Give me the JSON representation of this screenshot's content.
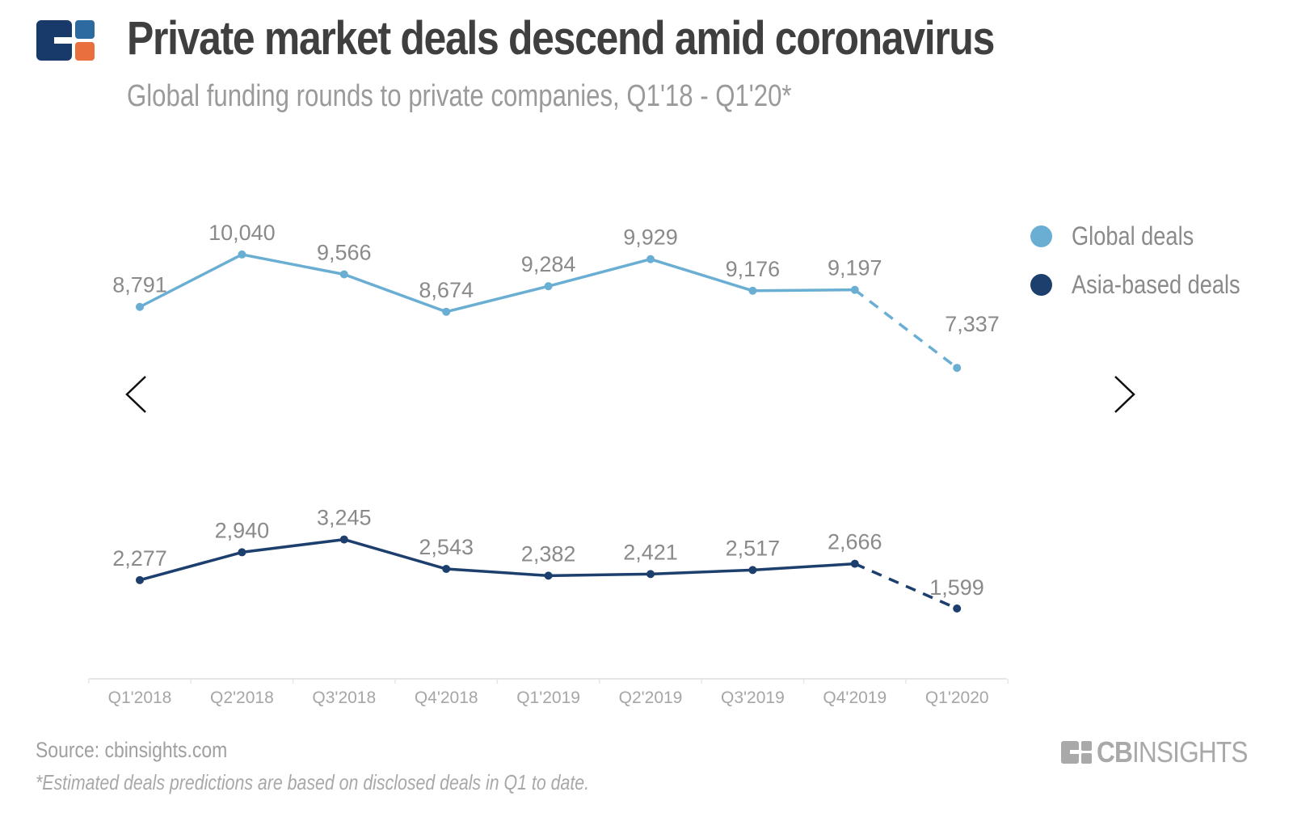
{
  "header": {
    "title": "Private market deals descend amid coronavirus",
    "subtitle": "Global funding rounds to private companies, Q1'18 - Q1'20*",
    "logo_icon": "cb-insights-logo-icon"
  },
  "navigation": {
    "prev_icon": "chevron-left-icon",
    "next_icon": "chevron-right-icon"
  },
  "footer": {
    "source": "Source: cbinsights.com",
    "footnote": "*Estimated deals predictions are based on disclosed deals in Q1 to date.",
    "brand_bold": "CB",
    "brand_light": "INSIGHTS"
  },
  "colors": {
    "global": "#6aafd3",
    "asia": "#1d3f6e",
    "logo_dark": "#173a6a",
    "logo_mid": "#2c6aa0",
    "logo_orange": "#e9703e",
    "label": "#8a8a8a",
    "axis": "#e6e6e6"
  },
  "chart_data": {
    "type": "line",
    "title": "Private market deals descend amid coronavirus",
    "subtitle": "Global funding rounds to private companies, Q1'18 - Q1'20*",
    "xlabel": "",
    "ylabel": "",
    "categories": [
      "Q1'2018",
      "Q2'2018",
      "Q3'2018",
      "Q4'2018",
      "Q1'2019",
      "Q2'2019",
      "Q3'2019",
      "Q4'2019",
      "Q1'2020"
    ],
    "series": [
      {
        "name": "Global deals",
        "values": [
          8791,
          10040,
          9566,
          8674,
          9284,
          9929,
          9176,
          9197,
          7337
        ],
        "labels": [
          "8,791",
          "10,040",
          "9,566",
          "8,674",
          "9,284",
          "9,929",
          "9,176",
          "9,197",
          "7,337"
        ],
        "estimated_from_index": 8
      },
      {
        "name": "Asia-based deals",
        "values": [
          2277,
          2940,
          3245,
          2543,
          2382,
          2421,
          2517,
          2666,
          1599
        ],
        "labels": [
          "2,277",
          "2,940",
          "3,245",
          "2,543",
          "2,382",
          "2,421",
          "2,517",
          "2,666",
          "1,599"
        ],
        "estimated_from_index": 8
      }
    ],
    "y_axis_visible": false,
    "grid": false,
    "legend": "right",
    "last_segment_style": "dashed (estimated)"
  }
}
